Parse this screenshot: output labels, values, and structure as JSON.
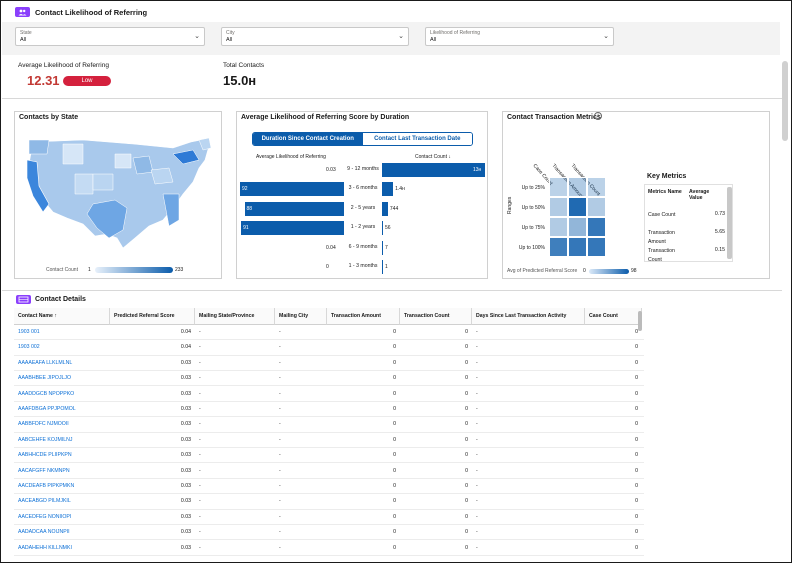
{
  "header": {
    "title": "Contact Likelihood of Referring",
    "icon": "users-icon"
  },
  "filters": [
    {
      "label": "State",
      "value": "All"
    },
    {
      "label": "City",
      "value": "All"
    },
    {
      "label": "Likelihood of Referring",
      "value": "All"
    }
  ],
  "kpis": {
    "avg_label": "Average Likelihood of Referring",
    "avg_value": "12.31",
    "avg_badge": "Low",
    "total_label": "Total Contacts",
    "total_value": "15.0ʜ"
  },
  "map_panel": {
    "title": "Contacts by State",
    "legend_label": "Contact Count",
    "legend_min": "1",
    "legend_max": "233"
  },
  "duration_panel": {
    "title": "Average Likelihood of Referring Score by Duration",
    "toggle_active": "Duration Since Contact Creation",
    "toggle_inactive": "Contact Last Transaction Date",
    "left_header": "Average Likelihood of Referring",
    "right_header": "Contact Count ↓",
    "rows": [
      {
        "label": "9 - 12 months",
        "avg": "0.03",
        "count": "13ʜ",
        "avg_val": 0.03,
        "count_val": 13000
      },
      {
        "label": "3 - 6 months",
        "avg": "92",
        "count": "1.4ʜ",
        "avg_val": 92,
        "count_val": 1400
      },
      {
        "label": "2 - 5 years",
        "avg": "88",
        "count": "744",
        "avg_val": 88,
        "count_val": 744
      },
      {
        "label": "1 - 2 years",
        "avg": "91",
        "count": "56",
        "avg_val": 91,
        "count_val": 56
      },
      {
        "label": "6 - 9 months",
        "avg": "0.04",
        "count": "7",
        "avg_val": 0.04,
        "count_val": 7
      },
      {
        "label": "1 - 3 months",
        "avg": "0",
        "count": "1",
        "avg_val": 0,
        "count_val": 1
      }
    ]
  },
  "metrics_panel": {
    "title": "Contact Transaction Metrics",
    "col_labels": [
      "Case Count",
      "Transaction Amount",
      "Transaction Count"
    ],
    "row_labels": [
      "Up to 25%",
      "Up to 50%",
      "Up to 75%",
      "Up to 100%"
    ],
    "y_axis": "Ranges",
    "legend_label": "Avg of Predicted Referral Score",
    "legend_min": "0",
    "legend_max": "98",
    "heat": [
      [
        0.15,
        0.2,
        0.15
      ],
      [
        0.2,
        0.9,
        0.2
      ],
      [
        0.2,
        0.35,
        0.8
      ],
      [
        0.75,
        0.8,
        0.8
      ]
    ]
  },
  "key_metrics": {
    "title": "Key Metrics",
    "headers": [
      "Metrics Name",
      "Average Value"
    ],
    "rows": [
      {
        "name": "Case Count",
        "value": "0.73"
      },
      {
        "name": "Transaction Amount",
        "value": "5.65"
      },
      {
        "name": "Transaction Count",
        "value": "0.15"
      }
    ]
  },
  "details": {
    "title": "Contact Details",
    "icon": "table-icon",
    "columns": [
      "Contact Name ↑",
      "Predicted Referral Score",
      "Mailing State/Province",
      "Mailing City",
      "Transaction Amount",
      "Transaction Count",
      "Days Since Last Transaction Activity",
      "Case Count"
    ],
    "rows": [
      [
        "1903 001",
        "0.04",
        "-",
        "-",
        "0",
        "0",
        "-",
        "0"
      ],
      [
        "1903 002",
        "0.04",
        "-",
        "-",
        "0",
        "0",
        "-",
        "0"
      ],
      [
        "AAAAEAFA LLKLMLNL",
        "0.03",
        "-",
        "-",
        "0",
        "0",
        "-",
        "0"
      ],
      [
        "AAABHBEE JIPOJLJO",
        "0.03",
        "-",
        "-",
        "0",
        "0",
        "-",
        "0"
      ],
      [
        "AAADDGCB NPOPPKO",
        "0.03",
        "-",
        "-",
        "0",
        "0",
        "-",
        "0"
      ],
      [
        "AAAFDBGA PPJPOMOL",
        "0.03",
        "-",
        "-",
        "0",
        "0",
        "-",
        "0"
      ],
      [
        "AABBFDFC NJMOOII",
        "0.03",
        "-",
        "-",
        "0",
        "0",
        "-",
        "0"
      ],
      [
        "AABCEHFE KOJMILNJ",
        "0.03",
        "-",
        "-",
        "0",
        "0",
        "-",
        "0"
      ],
      [
        "AABHHCDE PLIIPKPN",
        "0.03",
        "-",
        "-",
        "0",
        "0",
        "-",
        "0"
      ],
      [
        "AACAFGFF NKMNPN",
        "0.03",
        "-",
        "-",
        "0",
        "0",
        "-",
        "0"
      ],
      [
        "AACDEAFB PIPKPMKN",
        "0.03",
        "-",
        "-",
        "0",
        "0",
        "-",
        "0"
      ],
      [
        "AACEABGD PILMJKIL",
        "0.03",
        "-",
        "-",
        "0",
        "0",
        "-",
        "0"
      ],
      [
        "AACEDFEG NONIIOPI",
        "0.03",
        "-",
        "-",
        "0",
        "0",
        "-",
        "0"
      ],
      [
        "AADADCAA NOIJNPII",
        "0.03",
        "-",
        "-",
        "0",
        "0",
        "-",
        "0"
      ],
      [
        "AADAHEHH KILLNMKI",
        "0.03",
        "-",
        "-",
        "0",
        "0",
        "-",
        "0"
      ]
    ]
  },
  "colors": {
    "accent": "#0b5cab",
    "brand": "#8a3ffc",
    "danger": "#d4213d"
  }
}
